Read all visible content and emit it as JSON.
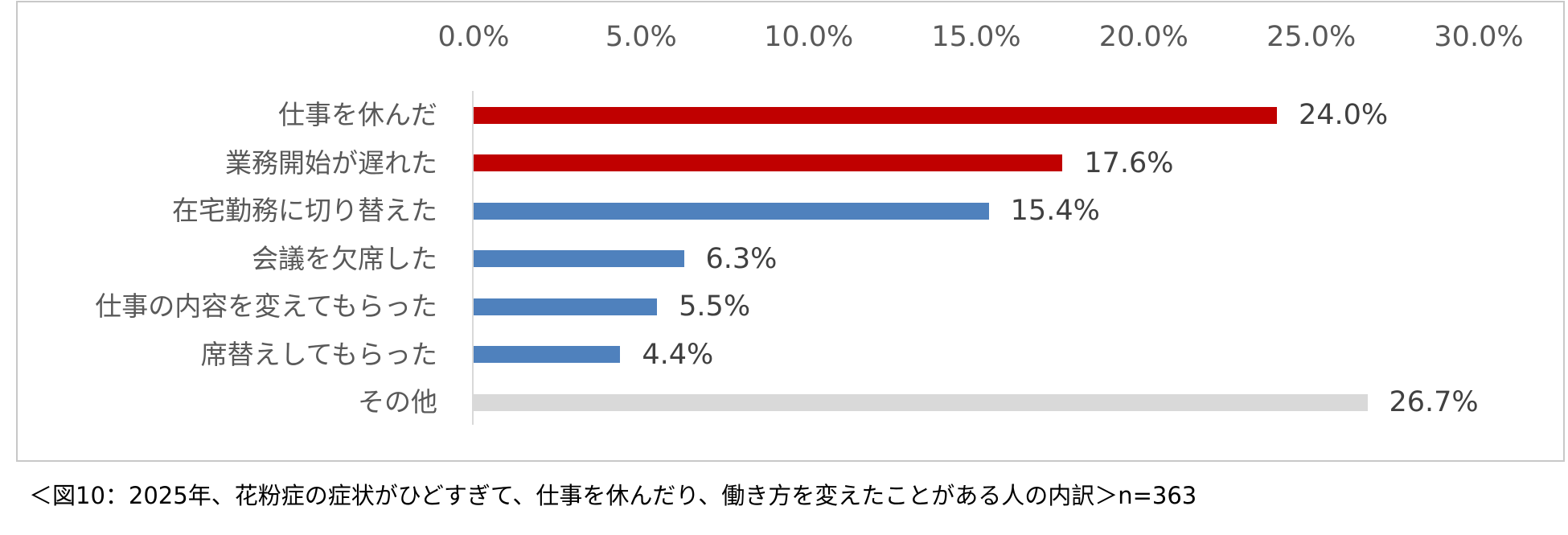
{
  "chart_data": {
    "type": "bar",
    "orientation": "horizontal",
    "title": "",
    "xlabel": "",
    "ylabel": "",
    "xlim": [
      0,
      30
    ],
    "x_ticks": [
      "0.0%",
      "5.0%",
      "10.0%",
      "15.0%",
      "20.0%",
      "25.0%",
      "30.0%"
    ],
    "x_tick_values": [
      0,
      5,
      10,
      15,
      20,
      25,
      30
    ],
    "x_axis_position": "top",
    "grid": false,
    "legend": null,
    "categories": [
      "仕事を休んだ",
      "業務開始が遅れた",
      "在宅勤務に切り替えた",
      "会議を欠席した",
      "仕事の内容を変えてもらった",
      "席替えしてもらった",
      "その他"
    ],
    "values": [
      24.0,
      17.6,
      15.4,
      6.3,
      5.5,
      4.4,
      26.7
    ],
    "value_labels": [
      "24.0%",
      "17.6%",
      "15.4%",
      "6.3%",
      "5.5%",
      "4.4%",
      "26.7%"
    ],
    "bar_colors": [
      "#C00000",
      "#C00000",
      "#4F81BD",
      "#4F81BD",
      "#4F81BD",
      "#4F81BD",
      "#D9D9D9"
    ],
    "unit": "%",
    "caption": "＜図10：2025年、花粉症の症状がひどすぎて、仕事を休んだり、働き方を変えたことがある人の内訳＞n=363",
    "sample_size": "n=363"
  },
  "colors": {
    "highlight": "#C00000",
    "standard": "#4F81BD",
    "other": "#D9D9D9",
    "axis": "#D9D9D9",
    "text": "#595959"
  }
}
